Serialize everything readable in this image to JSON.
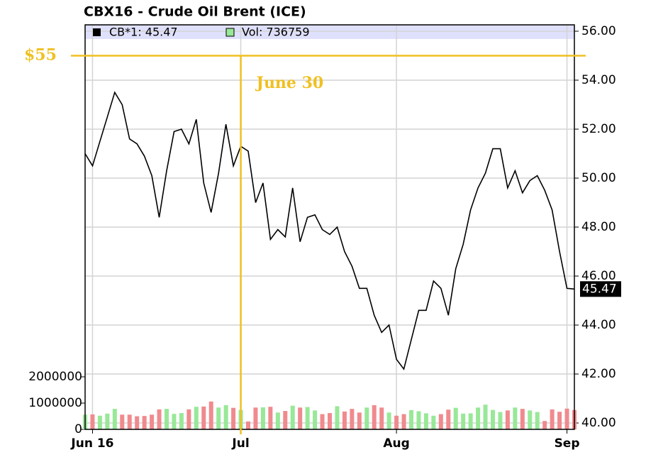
{
  "chart_data": {
    "type": "line",
    "title": "CBX16 - Crude Oil Brent (ICE)",
    "categories": [
      null,
      "Jun 16",
      null,
      null,
      null,
      null,
      null,
      null,
      null,
      null,
      null,
      null,
      null,
      null,
      null,
      null,
      null,
      null,
      null,
      null,
      null,
      "Jul",
      null,
      null,
      null,
      null,
      null,
      null,
      null,
      null,
      null,
      null,
      null,
      null,
      null,
      null,
      null,
      null,
      null,
      null,
      null,
      null,
      "Aug",
      null,
      null,
      null,
      null,
      null,
      null,
      null,
      null,
      null,
      null,
      null,
      null,
      null,
      null,
      null,
      null,
      null,
      null,
      null,
      null,
      null,
      null,
      "Sep",
      null
    ],
    "series": [
      {
        "name": "CB*1: 45.47",
        "color": "#000000",
        "values": [
          51.0,
          50.5,
          51.5,
          52.5,
          53.5,
          53.0,
          51.6,
          51.4,
          50.9,
          50.1,
          48.4,
          50.3,
          51.9,
          52.0,
          51.4,
          52.4,
          49.8,
          48.6,
          50.2,
          52.2,
          50.5,
          51.3,
          51.1,
          49.0,
          49.8,
          47.5,
          47.9,
          47.6,
          49.6,
          47.4,
          48.4,
          48.5,
          47.9,
          47.7,
          48.0,
          47.0,
          46.4,
          45.5,
          45.5,
          44.4,
          43.7,
          44.0,
          42.6,
          42.2,
          43.4,
          44.6,
          44.6,
          45.8,
          45.5,
          44.4,
          46.3,
          47.3,
          48.7,
          49.6,
          50.2,
          51.2,
          51.2,
          49.6,
          50.3,
          49.4,
          49.9,
          50.1,
          49.5,
          48.7,
          47.0,
          45.5,
          45.47
        ]
      },
      {
        "name": "Vol: 736759",
        "axis": "y2",
        "up_color": "#98e898",
        "down_color": "#f08a8e",
        "values": [
          560000,
          570000,
          520000,
          600000,
          780000,
          560000,
          560000,
          500000,
          510000,
          560000,
          760000,
          780000,
          590000,
          620000,
          760000,
          860000,
          870000,
          1060000,
          830000,
          920000,
          820000,
          740000,
          300000,
          830000,
          840000,
          860000,
          640000,
          700000,
          900000,
          830000,
          850000,
          720000,
          580000,
          620000,
          880000,
          680000,
          780000,
          640000,
          830000,
          920000,
          830000,
          640000,
          520000,
          580000,
          730000,
          690000,
          610000,
          520000,
          580000,
          750000,
          820000,
          600000,
          610000,
          830000,
          940000,
          740000,
          660000,
          720000,
          830000,
          780000,
          720000,
          660000,
          320000,
          760000,
          670000,
          790000,
          736759
        ]
      }
    ],
    "ylim": [
      39.74,
      56.26
    ],
    "yticks": [
      {
        "value": 40,
        "label": "40.00"
      },
      {
        "value": 42,
        "label": "42.00"
      },
      {
        "value": 44,
        "label": "44.00"
      },
      {
        "value": 46,
        "label": "46.00"
      },
      {
        "value": 48,
        "label": "48.00"
      },
      {
        "value": 50,
        "label": "50.00"
      },
      {
        "value": 52,
        "label": "52.00"
      },
      {
        "value": 54,
        "label": "54.00"
      },
      {
        "value": 56,
        "label": "56.00"
      }
    ],
    "y2lim": [
      0,
      15400000
    ],
    "y2ticks": [
      0,
      1000000,
      2000000
    ],
    "grid": true,
    "annotations": [
      {
        "label": "$55",
        "value": 55,
        "color": "#f0c020"
      },
      {
        "label": "June 30",
        "x": 21,
        "color": "#f0c020"
      }
    ]
  }
}
